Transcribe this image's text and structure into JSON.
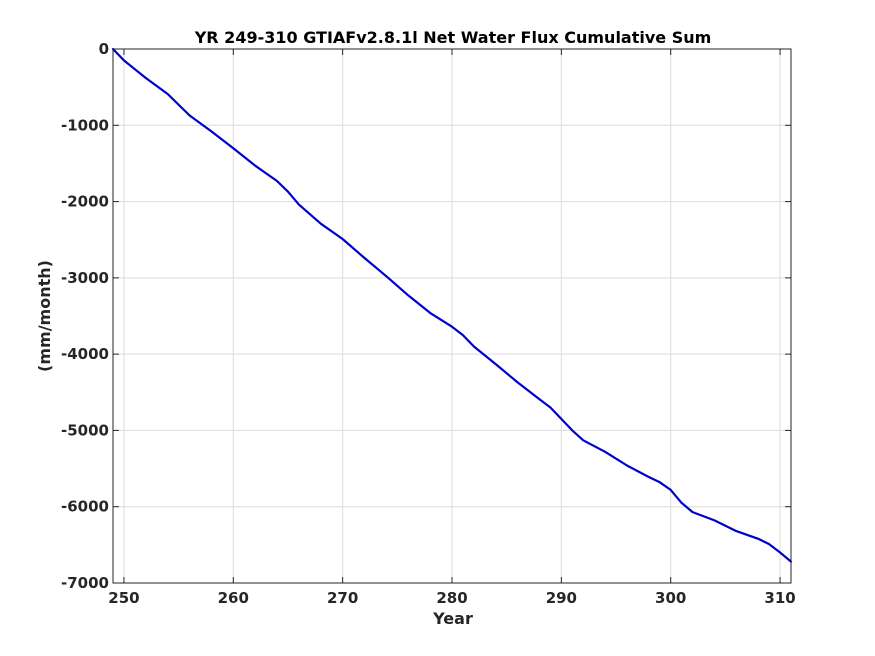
{
  "chart_data": {
    "type": "line",
    "title": "YR 249-310 GTIAFv2.8.1l Net Water Flux Cumulative Sum",
    "xlabel": "Year",
    "ylabel": "(mm/month)",
    "xlim": [
      249,
      311
    ],
    "ylim": [
      -7000,
      0
    ],
    "xticks": [
      250,
      260,
      270,
      280,
      290,
      300,
      310
    ],
    "xtick_labels": [
      "250",
      "260",
      "270",
      "280",
      "290",
      "300",
      "310"
    ],
    "yticks": [
      0,
      -1000,
      -2000,
      -3000,
      -4000,
      -5000,
      -6000,
      -7000
    ],
    "ytick_labels": [
      "0",
      "-1000",
      "-2000",
      "-3000",
      "-4000",
      "-5000",
      "-6000",
      "-7000"
    ],
    "grid": true,
    "series": [
      {
        "color": "#0000cc",
        "x": [
          249,
          250,
          252,
          254,
          256,
          258,
          260,
          262,
          264,
          265,
          266,
          268,
          270,
          272,
          274,
          276,
          278,
          280,
          281,
          282,
          284,
          286,
          288,
          289,
          290,
          291,
          292,
          294,
          296,
          298,
          299,
          300,
          301,
          302,
          304,
          306,
          307,
          308,
          309,
          310,
          311
        ],
        "y": [
          0,
          -150,
          -380,
          -590,
          -870,
          -1080,
          -1300,
          -1530,
          -1730,
          -1870,
          -2040,
          -2290,
          -2490,
          -2740,
          -2980,
          -3230,
          -3460,
          -3640,
          -3750,
          -3900,
          -4130,
          -4370,
          -4590,
          -4700,
          -4850,
          -5000,
          -5130,
          -5280,
          -5460,
          -5610,
          -5680,
          -5780,
          -5950,
          -6070,
          -6180,
          -6320,
          -6370,
          -6420,
          -6490,
          -6600,
          -6720
        ]
      }
    ]
  }
}
